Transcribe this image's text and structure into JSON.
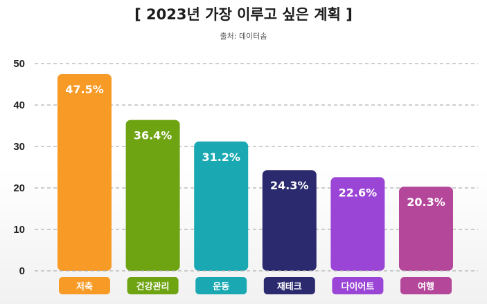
{
  "title": "[ 2023년 가장 이루고 싶은 계획 ]",
  "source": "출처: 데이터솜",
  "chart_data": {
    "type": "bar",
    "categories": [
      "저축",
      "건강관리",
      "운동",
      "재테크",
      "다이어트",
      "여행"
    ],
    "values": [
      47.5,
      36.4,
      31.2,
      24.3,
      22.6,
      20.3
    ],
    "data_labels": [
      "47.5%",
      "36.4%",
      "31.2%",
      "24.3%",
      "22.6%",
      "20.3%"
    ],
    "colors": [
      "#f79a26",
      "#6ea312",
      "#1aa9b3",
      "#2b2a6e",
      "#9b45d6",
      "#b4479a"
    ],
    "yticks": [
      0,
      10,
      20,
      30,
      40,
      50
    ],
    "ylim": [
      0,
      50
    ],
    "grid": true,
    "gridline_style": "dashed",
    "legend": false
  }
}
